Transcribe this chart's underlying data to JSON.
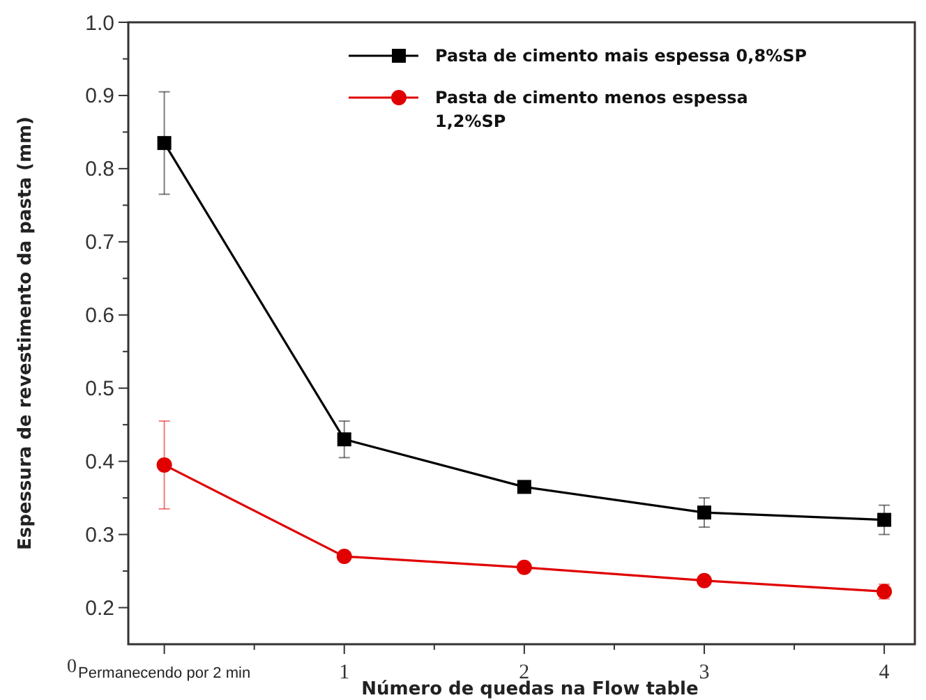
{
  "chart_data": {
    "type": "line",
    "xlabel": "Número de quedas na Flow table",
    "ylabel": "Espessura de revestimento da pasta (mm)",
    "x": [
      0,
      1,
      2,
      3,
      4
    ],
    "series": [
      {
        "name": "Pasta de cimento mais espessa 0,8%SP",
        "color": "#000000",
        "marker": "square",
        "values": [
          0.835,
          0.43,
          0.365,
          0.33,
          0.32
        ],
        "errors": [
          0.07,
          0.025,
          null,
          0.02,
          0.02
        ]
      },
      {
        "name": "Pasta de cimento menos espessa 1,2%SP",
        "color": "#e00000",
        "marker": "circle",
        "values": [
          0.395,
          0.27,
          0.255,
          0.237,
          0.222
        ],
        "errors": [
          0.06,
          null,
          null,
          null,
          0.01
        ]
      }
    ],
    "xlim": [
      -0.2,
      4.17
    ],
    "xticks": [
      {
        "value": 0,
        "label": "Permanecendo por 2 min"
      },
      {
        "value": 0.5,
        "label": null
      },
      1,
      {
        "value": 1.5,
        "label": null
      },
      2,
      {
        "value": 2.5,
        "label": null
      },
      3,
      {
        "value": 3.5,
        "label": null
      },
      4
    ],
    "ylim": [
      0.15,
      1.0
    ],
    "yticks": [
      0.2,
      {
        "value": 0.25,
        "label": null
      },
      0.3,
      {
        "value": 0.35,
        "label": null
      },
      0.4,
      {
        "value": 0.45,
        "label": null
      },
      0.5,
      {
        "value": 0.55,
        "label": null
      },
      0.6,
      {
        "value": 0.65,
        "label": null
      },
      0.7,
      {
        "value": 0.75,
        "label": null
      },
      0.8,
      {
        "value": 0.85,
        "label": null
      },
      0.9,
      {
        "value": 0.95,
        "label": null
      },
      {
        "value": 1.0,
        "label": "1.0"
      }
    ],
    "annotations": [
      "0"
    ],
    "legend": "top right",
    "grid": false,
    "line_style": "solid"
  }
}
